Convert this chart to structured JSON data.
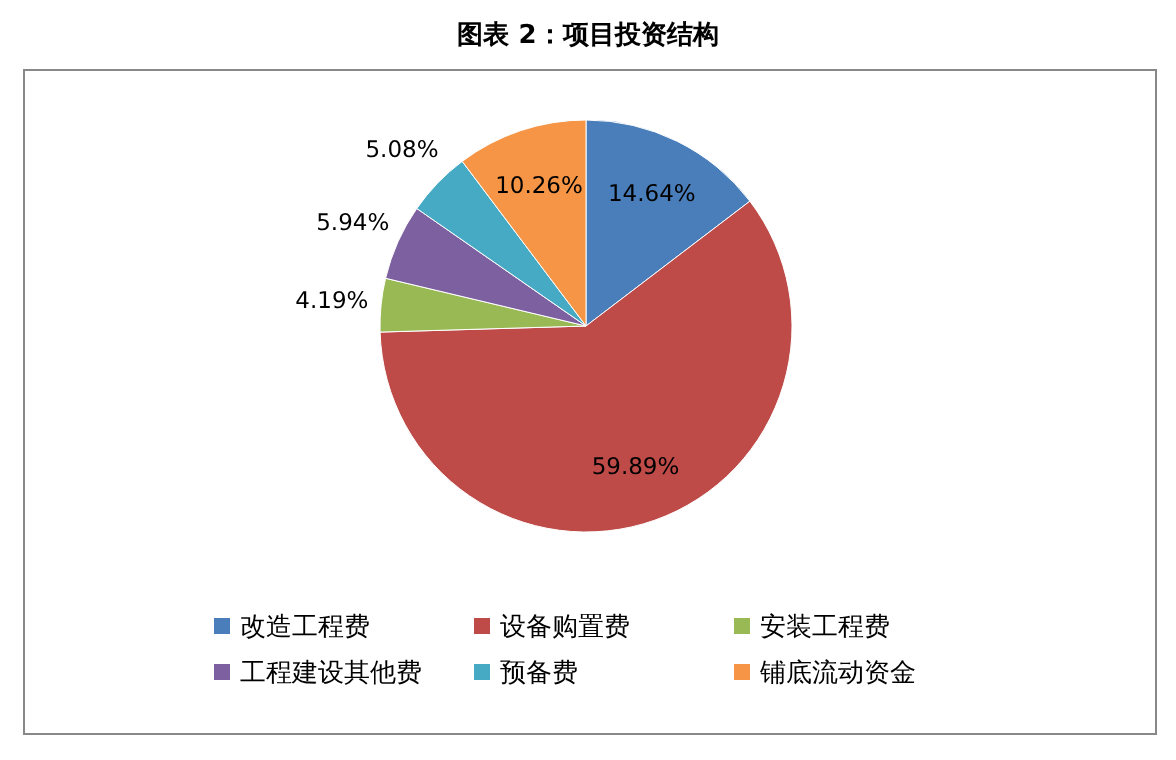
{
  "chart_data": {
    "type": "pie",
    "title": "图表 2：项目投资结构",
    "categories": [
      "改造工程费",
      "设备购置费",
      "安装工程费",
      "工程建设其他费",
      "预备费",
      "铺底流动资金"
    ],
    "values": [
      14.64,
      59.89,
      4.19,
      5.94,
      5.08,
      10.26
    ],
    "colors": [
      "#4a7ebb",
      "#be4b48",
      "#98b954",
      "#7d60a0",
      "#46aac5",
      "#f69545"
    ],
    "value_labels": [
      "14.64%",
      "59.89%",
      "4.19%",
      "5.94%",
      "5.08%",
      "10.26%"
    ],
    "legend": "bottom"
  }
}
